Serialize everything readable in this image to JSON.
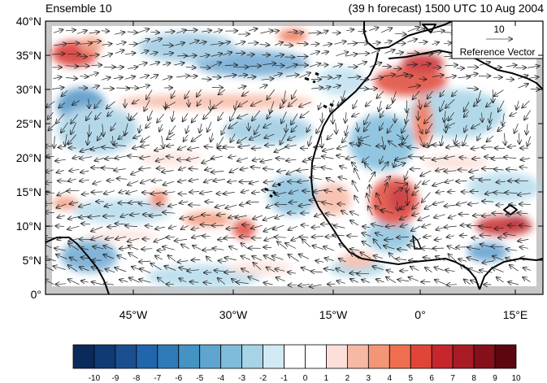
{
  "header": {
    "left_title": "Ensemble 10",
    "right_title": "(39 h forecast) 1500 UTC 10 Aug 2004"
  },
  "map": {
    "lat_labels": [
      "40°N",
      "35°N",
      "30°N",
      "25°N",
      "20°N",
      "15°N",
      "10°N",
      "5°N",
      "0°"
    ],
    "lon_labels": [
      "45°W",
      "30°W",
      "15°W",
      "0°",
      "15°E"
    ],
    "reference_vector": {
      "value": "10",
      "label": "Reference Vector"
    }
  },
  "colorbar": {
    "labels": [
      "-10",
      "-9",
      "-8",
      "-7",
      "-6",
      "-5",
      "-4",
      "-3",
      "-2",
      "-1",
      "0",
      "1",
      "2",
      "3",
      "4",
      "5",
      "6",
      "7",
      "8",
      "9",
      "10"
    ],
    "colors": [
      "#0b2a5b",
      "#0f3a73",
      "#1a4f8f",
      "#2166ac",
      "#2f7ab8",
      "#4393c3",
      "#5fa5cf",
      "#7fbbdb",
      "#a6d3e6",
      "#d1eaf4",
      "#ffffff",
      "#ffffff",
      "#fbdfd8",
      "#f6b9a6",
      "#f39678",
      "#ee6f50",
      "#e04637",
      "#c6262c",
      "#a81b25",
      "#85101c",
      "#5c0710"
    ]
  }
}
